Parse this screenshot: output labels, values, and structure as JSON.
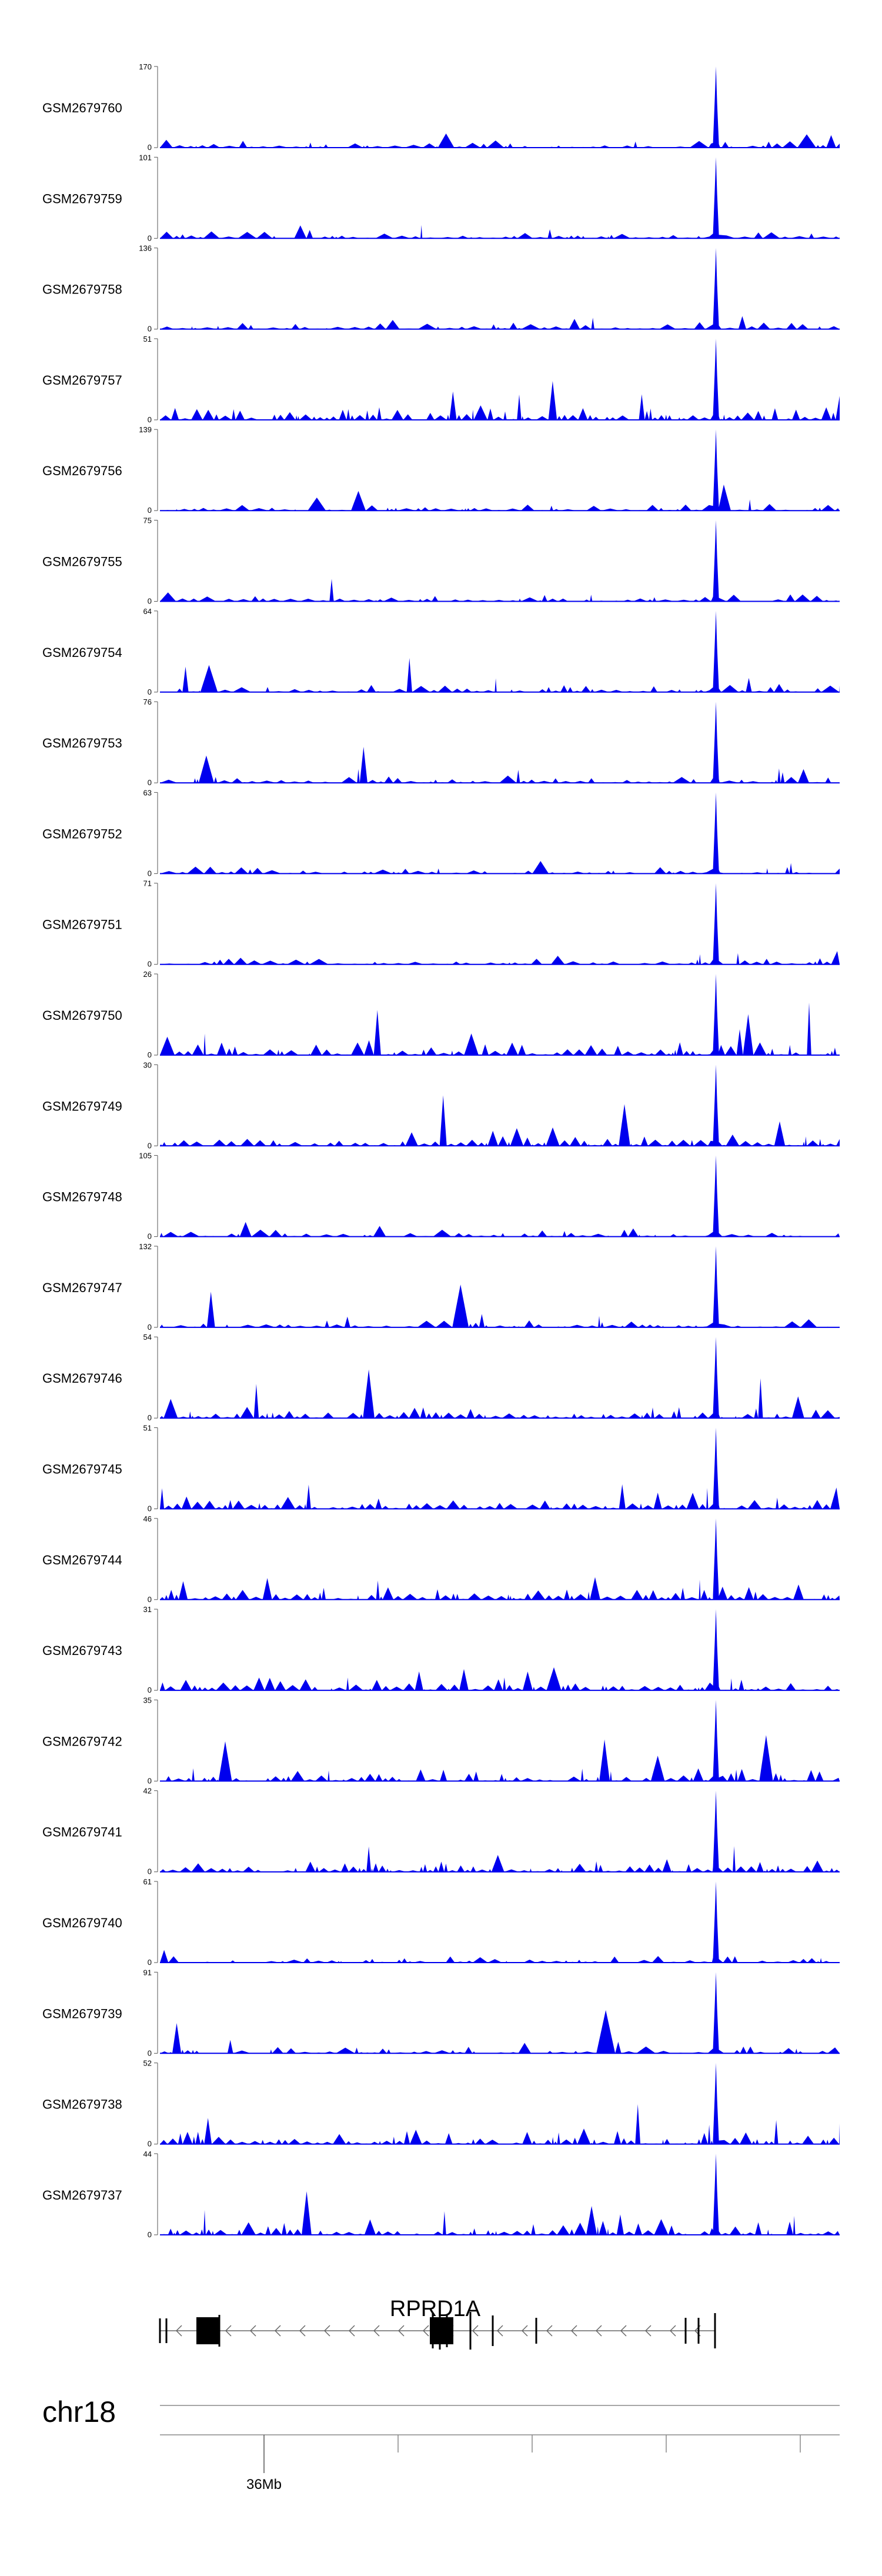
{
  "chart_data": {
    "type": "area",
    "colors": {
      "signal": "#0000ee",
      "axis": "#555555",
      "gene": "#000000"
    },
    "tracks": [
      {
        "name": "GSM2679760",
        "ymax": 170,
        "ymin": 0
      },
      {
        "name": "GSM2679759",
        "ymax": 101,
        "ymin": 0
      },
      {
        "name": "GSM2679758",
        "ymax": 136,
        "ymin": 0
      },
      {
        "name": "GSM2679757",
        "ymax": 51,
        "ymin": 0
      },
      {
        "name": "GSM2679756",
        "ymax": 139,
        "ymin": 0
      },
      {
        "name": "GSM2679755",
        "ymax": 75,
        "ymin": 0
      },
      {
        "name": "GSM2679754",
        "ymax": 64,
        "ymin": 0
      },
      {
        "name": "GSM2679753",
        "ymax": 76,
        "ymin": 0
      },
      {
        "name": "GSM2679752",
        "ymax": 63,
        "ymin": 0
      },
      {
        "name": "GSM2679751",
        "ymax": 71,
        "ymin": 0
      },
      {
        "name": "GSM2679750",
        "ymax": 26,
        "ymin": 0
      },
      {
        "name": "GSM2679749",
        "ymax": 30,
        "ymin": 0
      },
      {
        "name": "GSM2679748",
        "ymax": 105,
        "ymin": 0
      },
      {
        "name": "GSM2679747",
        "ymax": 132,
        "ymin": 0
      },
      {
        "name": "GSM2679746",
        "ymax": 54,
        "ymin": 0
      },
      {
        "name": "GSM2679745",
        "ymax": 51,
        "ymin": 0
      },
      {
        "name": "GSM2679744",
        "ymax": 46,
        "ymin": 0
      },
      {
        "name": "GSM2679743",
        "ymax": 31,
        "ymin": 0
      },
      {
        "name": "GSM2679742",
        "ymax": 35,
        "ymin": 0
      },
      {
        "name": "GSM2679741",
        "ymax": 42,
        "ymin": 0
      },
      {
        "name": "GSM2679740",
        "ymax": 61,
        "ymin": 0
      },
      {
        "name": "GSM2679739",
        "ymax": 91,
        "ymin": 0
      },
      {
        "name": "GSM2679738",
        "ymax": 52,
        "ymin": 0
      },
      {
        "name": "GSM2679737",
        "ymax": 44,
        "ymin": 0
      }
    ],
    "peak_position_fraction": 0.818,
    "gene": {
      "name": "RPRD1A",
      "strand": "-"
    },
    "chromosome": "chr18",
    "axis_tick_label": "36Mb"
  }
}
